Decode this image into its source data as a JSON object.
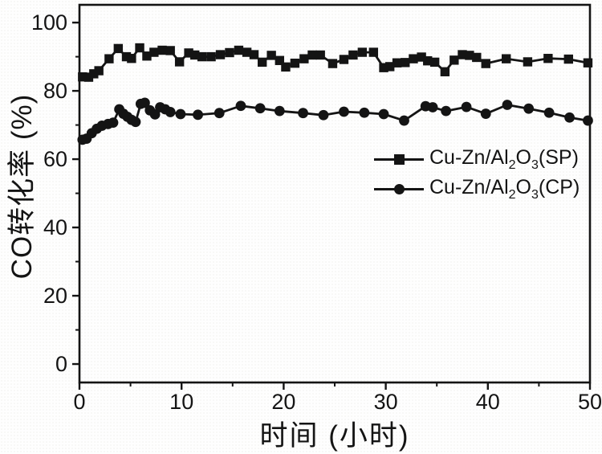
{
  "figure": {
    "background": "#fefefe",
    "ink": "#141414"
  },
  "chart_data": {
    "type": "line",
    "title": "",
    "grid": false,
    "legend_position": "center-right",
    "x_axis": {
      "label": "时间 (小时)",
      "lim": [
        0,
        50
      ],
      "ticks": [
        0,
        10,
        20,
        30,
        40,
        50
      ],
      "minor_ticks": [
        5,
        15,
        25,
        35,
        45
      ]
    },
    "y_axis": {
      "label": "CO转化率 (%)",
      "lim": [
        -5.4,
        105.2
      ],
      "ticks": [
        0,
        20,
        40,
        60,
        80,
        100
      ],
      "minor_ticks": [
        10,
        30,
        50,
        70,
        90
      ]
    },
    "series": [
      {
        "name": "Cu-Zn/Al2O3(SP)",
        "marker": "square",
        "x": [
          0.3,
          0.9,
          1.4,
          1.9,
          2.9,
          3.8,
          4.6,
          5.1,
          5.9,
          6.6,
          7.3,
          8.1,
          8.9,
          9.8,
          10.7,
          11.3,
          12.0,
          12.9,
          13.8,
          14.7,
          15.6,
          16.4,
          17.1,
          17.9,
          18.8,
          19.6,
          20.2,
          21.1,
          22.0,
          22.8,
          23.6,
          24.8,
          25.9,
          26.8,
          27.7,
          28.8,
          29.8,
          30.4,
          31.1,
          31.9,
          32.7,
          33.5,
          34.1,
          34.8,
          35.8,
          36.7,
          37.5,
          38.2,
          38.9,
          39.8,
          41.8,
          43.9,
          45.9,
          47.9,
          49.8
        ],
        "y": [
          84.1,
          84.0,
          85.0,
          85.9,
          89.4,
          92.4,
          90.0,
          89.5,
          92.6,
          90.2,
          91.3,
          91.9,
          91.8,
          88.5,
          91.1,
          90.5,
          90.0,
          90.0,
          90.6,
          91.2,
          91.9,
          91.3,
          90.6,
          88.4,
          90.4,
          88.9,
          87.0,
          88.1,
          89.4,
          90.5,
          90.5,
          88.0,
          89.2,
          90.5,
          91.3,
          91.3,
          86.8,
          87.1,
          88.2,
          88.3,
          89.4,
          89.9,
          88.8,
          88.4,
          85.6,
          89.0,
          90.6,
          90.4,
          89.8,
          88.0,
          89.4,
          88.5,
          89.5,
          89.3,
          88.2
        ]
      },
      {
        "name": "Cu-Zn/Al2O3(CP)",
        "marker": "circle",
        "x": [
          0.3,
          0.7,
          1.2,
          1.7,
          2.2,
          2.8,
          3.3,
          3.9,
          4.3,
          4.7,
          5.1,
          5.5,
          6.0,
          6.4,
          6.9,
          7.4,
          7.9,
          8.4,
          8.9,
          9.9,
          11.6,
          13.7,
          15.8,
          17.7,
          19.6,
          21.9,
          23.9,
          25.9,
          27.9,
          29.8,
          31.8,
          33.9,
          34.6,
          35.9,
          37.9,
          39.8,
          41.9,
          44.0,
          46.0,
          48.0,
          49.8
        ],
        "y": [
          65.7,
          66.0,
          67.6,
          68.9,
          69.8,
          70.3,
          70.7,
          74.6,
          73.3,
          72.4,
          71.5,
          70.9,
          76.2,
          76.5,
          74.3,
          73.1,
          75.2,
          74.6,
          73.8,
          73.2,
          73.0,
          73.5,
          75.6,
          74.9,
          74.1,
          73.5,
          72.9,
          73.9,
          73.6,
          73.2,
          71.3,
          75.5,
          75.2,
          74.1,
          75.3,
          73.3,
          75.9,
          74.8,
          73.6,
          72.2,
          71.3
        ]
      }
    ]
  },
  "legend": {
    "items": [
      {
        "marker": "square",
        "parts": [
          "Cu-Zn/Al",
          "2",
          "O",
          "3",
          "(SP)"
        ]
      },
      {
        "marker": "circle",
        "parts": [
          "Cu-Zn/Al",
          "2",
          "O",
          "3",
          "(CP)"
        ]
      }
    ]
  }
}
